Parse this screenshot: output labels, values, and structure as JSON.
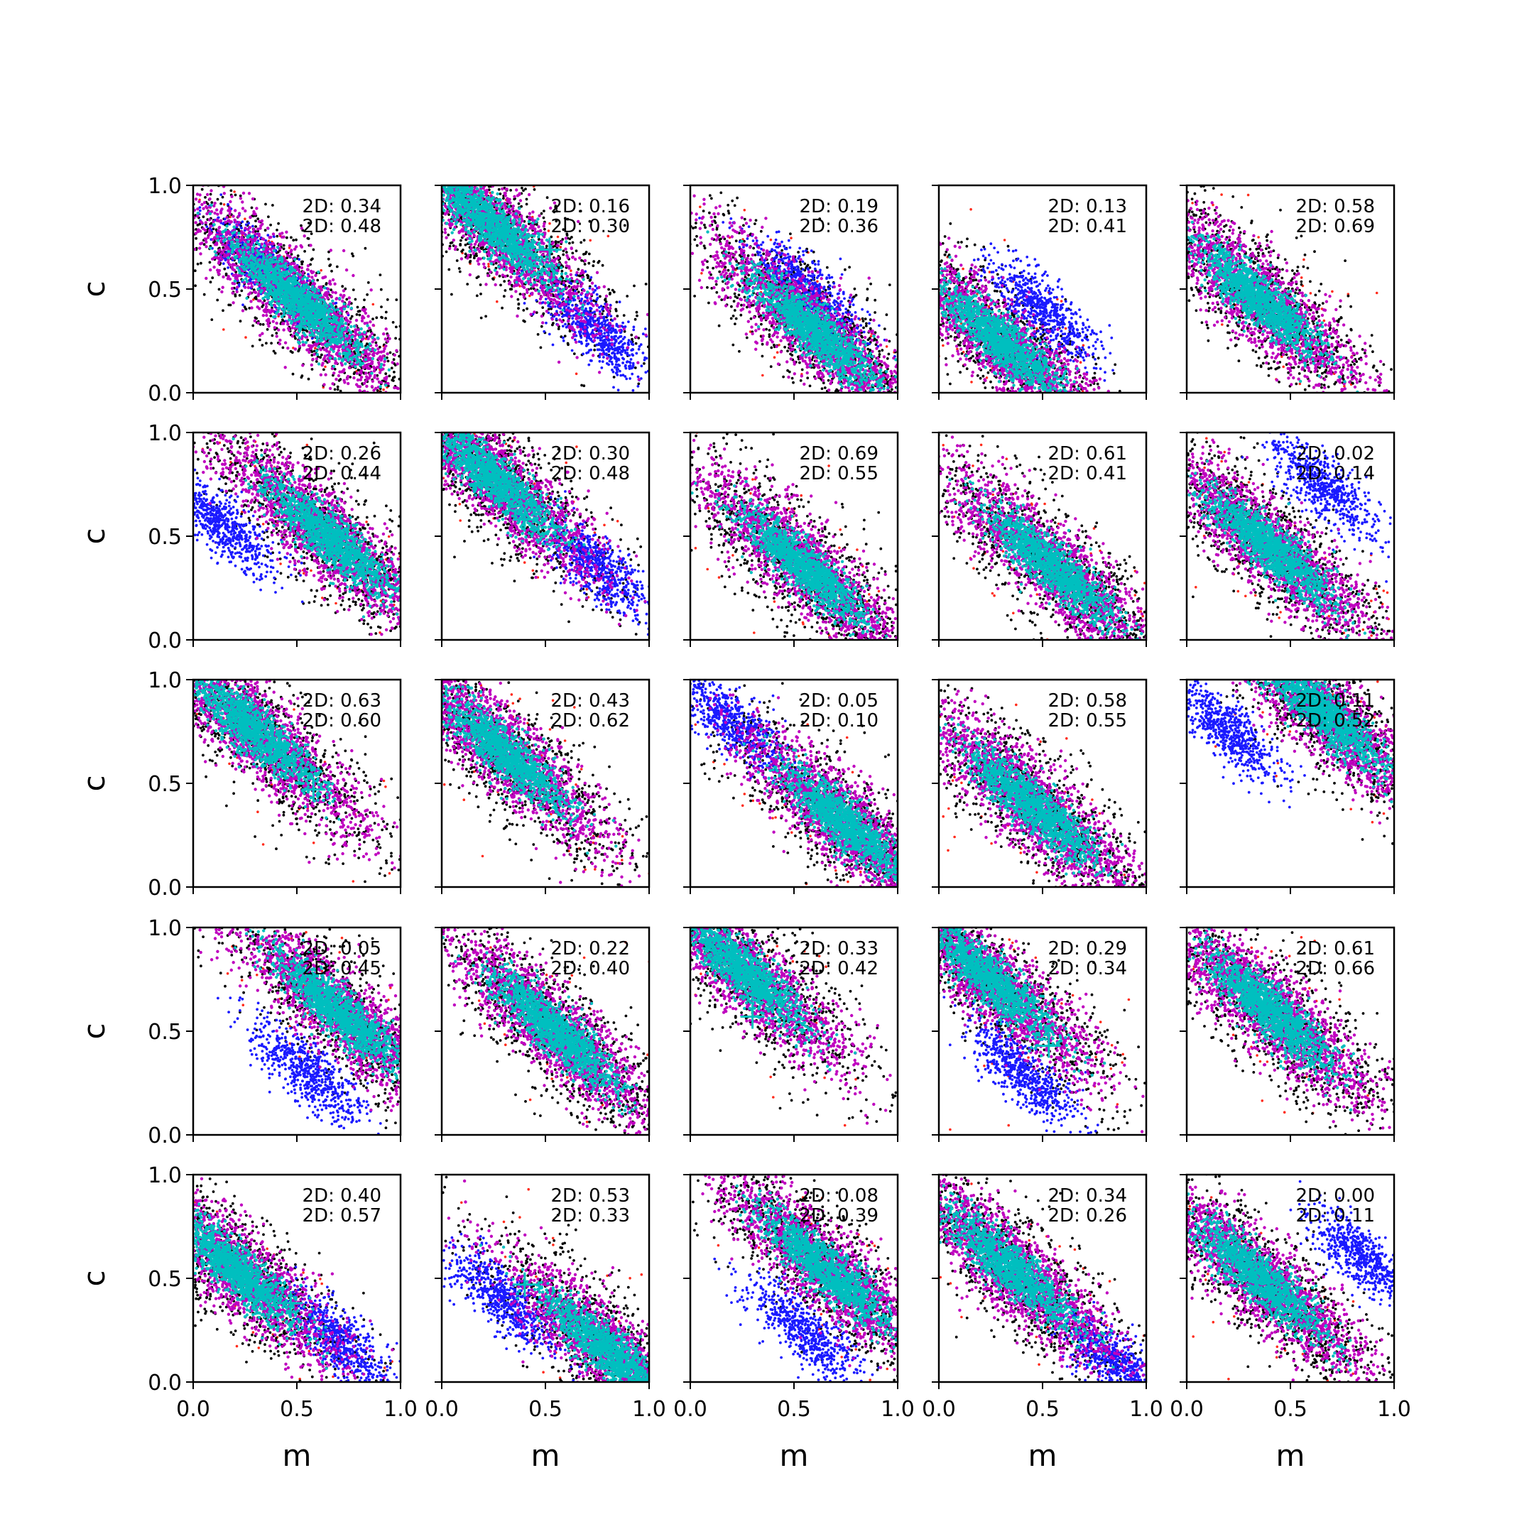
{
  "chart_data": {
    "type": "scatter",
    "grid": false,
    "rows": 5,
    "cols": 5,
    "xlabel": "m",
    "ylabel": "c",
    "xlim": [
      0,
      1
    ],
    "ylim": [
      0,
      1
    ],
    "xticks": [
      "0.0",
      "0.5",
      "1.0"
    ],
    "yticks": [
      "0.0",
      "0.5",
      "1.0"
    ],
    "colors": {
      "outer": "#000000",
      "outlier": "#ff2a1a",
      "alt": "#1a1aff",
      "mid": "#bf00bf",
      "core": "#00bfbf",
      "marker": "#00bfbf"
    },
    "panels": [
      {
        "annotations": [
          "2D: 0.34",
          "2D: 0.48"
        ],
        "center": [
          0.5,
          0.45
        ],
        "alt": [
          0.35,
          0.6
        ],
        "marker": null
      },
      {
        "annotations": [
          "2D: 0.16",
          "2D: 0.30"
        ],
        "center": [
          0.25,
          0.8
        ],
        "alt": [
          0.75,
          0.3
        ],
        "marker": [
          0.52,
          0.69
        ]
      },
      {
        "annotations": [
          "2D: 0.19",
          "2D: 0.36"
        ],
        "center": [
          0.6,
          0.3
        ],
        "alt": [
          0.55,
          0.5
        ],
        "marker": null
      },
      {
        "annotations": [
          "2D: 0.13",
          "2D: 0.41"
        ],
        "center": [
          0.3,
          0.25
        ],
        "alt": [
          0.5,
          0.4
        ],
        "marker": null
      },
      {
        "annotations": [
          "2D: 0.58",
          "2D: 0.69"
        ],
        "center": [
          0.35,
          0.45
        ],
        "alt": null,
        "marker": null
      },
      {
        "annotations": [
          "2D: 0.26",
          "2D: 0.44"
        ],
        "center": [
          0.65,
          0.5
        ],
        "alt": [
          0.15,
          0.55
        ],
        "marker": [
          0.47,
          0.58
        ]
      },
      {
        "annotations": [
          "2D: 0.30",
          "2D: 0.48"
        ],
        "center": [
          0.25,
          0.78
        ],
        "alt": [
          0.75,
          0.35
        ],
        "marker": [
          0.4,
          0.58
        ]
      },
      {
        "annotations": [
          "2D: 0.69",
          "2D: 0.55"
        ],
        "center": [
          0.55,
          0.35
        ],
        "alt": null,
        "marker": null
      },
      {
        "annotations": [
          "2D: 0.61",
          "2D: 0.41"
        ],
        "center": [
          0.55,
          0.35
        ],
        "alt": null,
        "marker": null
      },
      {
        "annotations": [
          "2D: 0.02",
          "2D: 0.14"
        ],
        "center": [
          0.4,
          0.45
        ],
        "alt": [
          0.65,
          0.75
        ],
        "marker": null
      },
      {
        "annotations": [
          "2D: 0.63",
          "2D: 0.60"
        ],
        "center": [
          0.3,
          0.75
        ],
        "alt": null,
        "marker": [
          0.58,
          0.47
        ]
      },
      {
        "annotations": [
          "2D: 0.43",
          "2D: 0.62"
        ],
        "center": [
          0.3,
          0.65
        ],
        "alt": null,
        "marker": null
      },
      {
        "annotations": [
          "2D: 0.05",
          "2D: 0.10"
        ],
        "center": [
          0.75,
          0.3
        ],
        "alt": [
          0.2,
          0.8
        ],
        "marker": [
          0.63,
          0.39
        ]
      },
      {
        "annotations": [
          "2D: 0.58",
          "2D: 0.55"
        ],
        "center": [
          0.45,
          0.4
        ],
        "alt": null,
        "marker": null
      },
      {
        "annotations": [
          "2D: 0.11",
          "2D: 0.52"
        ],
        "center": [
          0.65,
          0.85
        ],
        "alt": [
          0.2,
          0.75
        ],
        "marker": null
      },
      {
        "annotations": [
          "2D: 0.05",
          "2D: 0.45"
        ],
        "center": [
          0.7,
          0.6
        ],
        "alt": [
          0.55,
          0.3
        ],
        "marker": [
          0.58,
          0.7
        ]
      },
      {
        "annotations": [
          "2D: 0.22",
          "2D: 0.40"
        ],
        "center": [
          0.55,
          0.5
        ],
        "alt": null,
        "marker": null
      },
      {
        "annotations": [
          "2D: 0.33",
          "2D: 0.42"
        ],
        "center": [
          0.25,
          0.8
        ],
        "alt": null,
        "marker": [
          0.3,
          0.57
        ]
      },
      {
        "annotations": [
          "2D: 0.29",
          "2D: 0.34"
        ],
        "center": [
          0.25,
          0.75
        ],
        "alt": [
          0.4,
          0.3
        ],
        "marker": [
          0.53,
          0.43
        ]
      },
      {
        "annotations": [
          "2D: 0.61",
          "2D: 0.66"
        ],
        "center": [
          0.4,
          0.6
        ],
        "alt": null,
        "marker": null
      },
      {
        "annotations": [
          "2D: 0.40",
          "2D: 0.57"
        ],
        "center": [
          0.2,
          0.55
        ],
        "alt": [
          0.7,
          0.2
        ],
        "marker": [
          0.47,
          0.38
        ]
      },
      {
        "annotations": [
          "2D: 0.53",
          "2D: 0.33"
        ],
        "center": [
          0.8,
          0.15
        ],
        "alt": [
          0.3,
          0.4
        ],
        "marker": [
          0.4,
          0.47
        ]
      },
      {
        "annotations": [
          "2D: 0.08",
          "2D: 0.39"
        ],
        "center": [
          0.65,
          0.55
        ],
        "alt": [
          0.55,
          0.25
        ],
        "marker": null
      },
      {
        "annotations": [
          "2D: 0.34",
          "2D: 0.26"
        ],
        "center": [
          0.35,
          0.55
        ],
        "alt": [
          0.85,
          0.1
        ],
        "marker": null
      },
      {
        "annotations": [
          "2D: 0.00",
          "2D: 0.11"
        ],
        "center": [
          0.35,
          0.5
        ],
        "alt": [
          0.85,
          0.6
        ],
        "marker": null
      }
    ]
  }
}
